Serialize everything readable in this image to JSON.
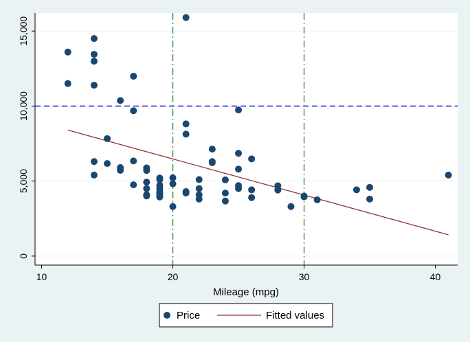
{
  "chart_data": {
    "type": "scatter",
    "xlabel": "Mileage (mpg)",
    "ylabel": "",
    "xlim": [
      9.5,
      41.7
    ],
    "ylim": [
      -600,
      16200
    ],
    "x_ticks": [
      10,
      20,
      30,
      40
    ],
    "x_tick_labels": [
      "10",
      "20",
      "30",
      "40"
    ],
    "y_ticks": [
      0,
      5000,
      10000,
      15000
    ],
    "y_tick_labels": [
      "0",
      "5,000",
      "10,000",
      "15,000"
    ],
    "grid": true,
    "legend_position": "bottom",
    "series": [
      {
        "name": "Price",
        "kind": "scatter",
        "color": "#1a476f",
        "points": [
          [
            12,
            13600
          ],
          [
            12,
            11500
          ],
          [
            14,
            14500
          ],
          [
            14,
            13450
          ],
          [
            14,
            12990
          ],
          [
            14,
            11390
          ],
          [
            14,
            6300
          ],
          [
            14,
            5400
          ],
          [
            15,
            7830
          ],
          [
            15,
            6170
          ],
          [
            16,
            10370
          ],
          [
            16,
            5900
          ],
          [
            16,
            5720
          ],
          [
            17,
            11990
          ],
          [
            17,
            9690
          ],
          [
            17,
            6340
          ],
          [
            17,
            4750
          ],
          [
            18,
            5880
          ],
          [
            18,
            5710
          ],
          [
            18,
            4930
          ],
          [
            18,
            4500
          ],
          [
            18,
            4090
          ],
          [
            18,
            4010
          ],
          [
            19,
            5200
          ],
          [
            19,
            5100
          ],
          [
            19,
            4730
          ],
          [
            19,
            4500
          ],
          [
            19,
            4300
          ],
          [
            19,
            4180
          ],
          [
            19,
            4050
          ],
          [
            19,
            3940
          ],
          [
            20,
            5220
          ],
          [
            20,
            4820
          ],
          [
            20,
            3300
          ],
          [
            21,
            15900
          ],
          [
            21,
            8810
          ],
          [
            21,
            8130
          ],
          [
            21,
            4300
          ],
          [
            21,
            4200
          ],
          [
            22,
            5100
          ],
          [
            22,
            4500
          ],
          [
            22,
            4080
          ],
          [
            22,
            3800
          ],
          [
            23,
            7130
          ],
          [
            23,
            6300
          ],
          [
            23,
            6220
          ],
          [
            24,
            5080
          ],
          [
            24,
            4200
          ],
          [
            24,
            3670
          ],
          [
            25,
            9740
          ],
          [
            25,
            6850
          ],
          [
            25,
            5800
          ],
          [
            25,
            4700
          ],
          [
            25,
            4500
          ],
          [
            26,
            6480
          ],
          [
            26,
            4420
          ],
          [
            26,
            3900
          ],
          [
            28,
            4690
          ],
          [
            28,
            4400
          ],
          [
            29,
            3300
          ],
          [
            30,
            4000
          ],
          [
            30,
            3950
          ],
          [
            31,
            3750
          ],
          [
            34,
            4420
          ],
          [
            35,
            4580
          ],
          [
            35,
            3800
          ],
          [
            41,
            5400
          ]
        ]
      },
      {
        "name": "Fitted values",
        "kind": "line",
        "color": "#90353b",
        "points": [
          [
            12,
            8400
          ],
          [
            41,
            1420
          ]
        ]
      }
    ],
    "reference_lines": [
      {
        "axis": "y",
        "value": 10000,
        "color": "#0000dd",
        "style": "dashed"
      },
      {
        "axis": "x",
        "value": 20,
        "color": "#2e7d32",
        "style": "dashdot"
      },
      {
        "axis": "x",
        "value": 30,
        "color": "#2e7d32",
        "style": "dashdot"
      }
    ]
  },
  "legend": {
    "items": [
      {
        "label": "Price"
      },
      {
        "label": "Fitted values"
      }
    ]
  },
  "colors": {
    "background": "#eaf2f3",
    "plot_background": "#ffffff",
    "grid": "#eaf2f3",
    "axis": "#000000"
  }
}
